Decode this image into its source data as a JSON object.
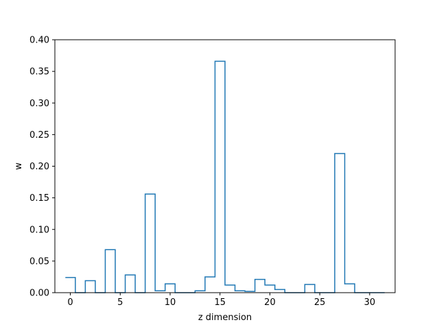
{
  "chart_data": {
    "type": "step",
    "title": "",
    "xlabel": "z dimension",
    "ylabel": "w",
    "xlim": [
      -1.55,
      32.55
    ],
    "ylim": [
      0,
      0.4
    ],
    "xticks": [
      0,
      5,
      10,
      15,
      20,
      25,
      30
    ],
    "yticks": [
      0.0,
      0.05,
      0.1,
      0.15,
      0.2,
      0.25,
      0.3,
      0.35,
      0.4
    ],
    "ytick_labels": [
      "0.00",
      "0.05",
      "0.10",
      "0.15",
      "0.20",
      "0.25",
      "0.30",
      "0.35",
      "0.40"
    ],
    "xtick_labels": [
      "0",
      "5",
      "10",
      "15",
      "20",
      "25",
      "30"
    ],
    "grid": false,
    "series": [
      {
        "color": "#1f77b4",
        "bin_width": 1,
        "bin_centers": [
          0,
          1,
          2,
          3,
          4,
          5,
          6,
          7,
          8,
          9,
          10,
          11,
          12,
          13,
          14,
          15,
          16,
          17,
          18,
          19,
          20,
          21,
          22,
          23,
          24,
          25,
          26,
          27,
          28,
          29,
          30,
          31
        ],
        "values": [
          0.024,
          0.0,
          0.019,
          0.0,
          0.068,
          0.0,
          0.028,
          0.0,
          0.156,
          0.003,
          0.014,
          0.0,
          0.0,
          0.003,
          0.025,
          0.366,
          0.012,
          0.003,
          0.002,
          0.021,
          0.012,
          0.005,
          0.0,
          0.0,
          0.013,
          0.0,
          0.0,
          0.22,
          0.014,
          0.0,
          0.0,
          0.0
        ]
      }
    ]
  }
}
